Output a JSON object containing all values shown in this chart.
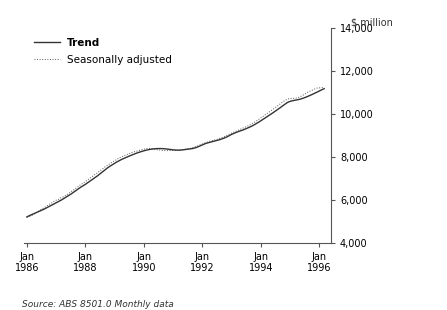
{
  "title": "",
  "ylabel": "$ million",
  "xlabel": "",
  "source_text": "Source: ABS 8501.0 Monthly data",
  "ylim": [
    4000,
    14000
  ],
  "yticks": [
    4000,
    6000,
    8000,
    10000,
    12000,
    14000
  ],
  "ytick_labels": [
    "4,000",
    "6,000",
    "8,000",
    "10,000",
    "12,000",
    "14,000"
  ],
  "xtick_years": [
    1986,
    1988,
    1990,
    1992,
    1994,
    1996
  ],
  "xlim_start": 1985.9,
  "xlim_end": 1996.4,
  "legend_entries": [
    "Trend",
    "Seasonally adjusted"
  ],
  "trend_color": "#333333",
  "seasonal_color": "#555555",
  "background_color": "#ffffff",
  "trend_data_x": [
    1986.0,
    1986.083,
    1986.167,
    1986.25,
    1986.333,
    1986.417,
    1986.5,
    1986.583,
    1986.667,
    1986.75,
    1986.833,
    1986.917,
    1987.0,
    1987.083,
    1987.167,
    1987.25,
    1987.333,
    1987.417,
    1987.5,
    1987.583,
    1987.667,
    1987.75,
    1987.833,
    1987.917,
    1988.0,
    1988.083,
    1988.167,
    1988.25,
    1988.333,
    1988.417,
    1988.5,
    1988.583,
    1988.667,
    1988.75,
    1988.833,
    1988.917,
    1989.0,
    1989.083,
    1989.167,
    1989.25,
    1989.333,
    1989.417,
    1989.5,
    1989.583,
    1989.667,
    1989.75,
    1989.833,
    1989.917,
    1990.0,
    1990.083,
    1990.167,
    1990.25,
    1990.333,
    1990.417,
    1990.5,
    1990.583,
    1990.667,
    1990.75,
    1990.833,
    1990.917,
    1991.0,
    1991.083,
    1991.167,
    1991.25,
    1991.333,
    1991.417,
    1991.5,
    1991.583,
    1991.667,
    1991.75,
    1991.833,
    1991.917,
    1992.0,
    1992.083,
    1992.167,
    1992.25,
    1992.333,
    1992.417,
    1992.5,
    1992.583,
    1992.667,
    1992.75,
    1992.833,
    1992.917,
    1993.0,
    1993.083,
    1993.167,
    1993.25,
    1993.333,
    1993.417,
    1993.5,
    1993.583,
    1993.667,
    1993.75,
    1993.833,
    1993.917,
    1994.0,
    1994.083,
    1994.167,
    1994.25,
    1994.333,
    1994.417,
    1994.5,
    1994.583,
    1994.667,
    1994.75,
    1994.833,
    1994.917,
    1995.0,
    1995.083,
    1995.167,
    1995.25,
    1995.333,
    1995.417,
    1995.5,
    1995.583,
    1995.667,
    1995.75,
    1995.833,
    1995.917,
    1996.0,
    1996.083,
    1996.167
  ],
  "trend_data_y": [
    5200,
    5260,
    5310,
    5360,
    5410,
    5460,
    5510,
    5560,
    5620,
    5680,
    5740,
    5800,
    5860,
    5920,
    5980,
    6050,
    6120,
    6190,
    6260,
    6340,
    6420,
    6500,
    6580,
    6650,
    6720,
    6800,
    6880,
    6960,
    7040,
    7120,
    7210,
    7300,
    7390,
    7480,
    7560,
    7630,
    7700,
    7770,
    7830,
    7890,
    7940,
    7990,
    8040,
    8085,
    8130,
    8175,
    8215,
    8250,
    8285,
    8315,
    8340,
    8360,
    8375,
    8385,
    8390,
    8390,
    8385,
    8375,
    8360,
    8345,
    8330,
    8320,
    8315,
    8320,
    8330,
    8345,
    8360,
    8375,
    8390,
    8420,
    8460,
    8510,
    8560,
    8610,
    8650,
    8680,
    8710,
    8740,
    8770,
    8800,
    8840,
    8880,
    8930,
    8990,
    9050,
    9100,
    9150,
    9190,
    9230,
    9270,
    9320,
    9370,
    9420,
    9480,
    9545,
    9615,
    9685,
    9760,
    9835,
    9910,
    9985,
    10060,
    10140,
    10220,
    10300,
    10385,
    10465,
    10545,
    10590,
    10620,
    10645,
    10665,
    10690,
    10725,
    10765,
    10810,
    10860,
    10910,
    10965,
    11020,
    11075,
    11130,
    11185
  ],
  "seasonal_data_x": [
    1986.0,
    1986.083,
    1986.167,
    1986.25,
    1986.333,
    1986.417,
    1986.5,
    1986.583,
    1986.667,
    1986.75,
    1986.833,
    1986.917,
    1987.0,
    1987.083,
    1987.167,
    1987.25,
    1987.333,
    1987.417,
    1987.5,
    1987.583,
    1987.667,
    1987.75,
    1987.833,
    1987.917,
    1988.0,
    1988.083,
    1988.167,
    1988.25,
    1988.333,
    1988.417,
    1988.5,
    1988.583,
    1988.667,
    1988.75,
    1988.833,
    1988.917,
    1989.0,
    1989.083,
    1989.167,
    1989.25,
    1989.333,
    1989.417,
    1989.5,
    1989.583,
    1989.667,
    1989.75,
    1989.833,
    1989.917,
    1990.0,
    1990.083,
    1990.167,
    1990.25,
    1990.333,
    1990.417,
    1990.5,
    1990.583,
    1990.667,
    1990.75,
    1990.833,
    1990.917,
    1991.0,
    1991.083,
    1991.167,
    1991.25,
    1991.333,
    1991.417,
    1991.5,
    1991.583,
    1991.667,
    1991.75,
    1991.833,
    1991.917,
    1992.0,
    1992.083,
    1992.167,
    1992.25,
    1992.333,
    1992.417,
    1992.5,
    1992.583,
    1992.667,
    1992.75,
    1992.833,
    1992.917,
    1993.0,
    1993.083,
    1993.167,
    1993.25,
    1993.333,
    1993.417,
    1993.5,
    1993.583,
    1993.667,
    1993.75,
    1993.833,
    1993.917,
    1994.0,
    1994.083,
    1994.167,
    1994.25,
    1994.333,
    1994.417,
    1994.5,
    1994.583,
    1994.667,
    1994.75,
    1994.833,
    1994.917,
    1995.0,
    1995.083,
    1995.167,
    1995.25,
    1995.333,
    1995.417,
    1995.5,
    1995.583,
    1995.667,
    1995.75,
    1995.833,
    1995.917,
    1996.0,
    1996.083,
    1996.167
  ],
  "seasonal_data_y": [
    5190,
    5220,
    5270,
    5340,
    5410,
    5480,
    5560,
    5630,
    5700,
    5780,
    5840,
    5920,
    5980,
    6020,
    6100,
    6140,
    6210,
    6280,
    6370,
    6440,
    6530,
    6610,
    6700,
    6770,
    6850,
    6930,
    7020,
    7100,
    7190,
    7260,
    7360,
    7430,
    7530,
    7600,
    7680,
    7760,
    7820,
    7890,
    7960,
    8010,
    8060,
    8110,
    8150,
    8200,
    8240,
    8270,
    8300,
    8330,
    8360,
    8390,
    8400,
    8390,
    8370,
    8350,
    8330,
    8310,
    8300,
    8295,
    8295,
    8305,
    8310,
    8310,
    8315,
    8320,
    8340,
    8360,
    8380,
    8400,
    8430,
    8470,
    8510,
    8560,
    8600,
    8650,
    8690,
    8730,
    8760,
    8790,
    8820,
    8860,
    8900,
    8950,
    9000,
    9060,
    9110,
    9160,
    9210,
    9260,
    9310,
    9360,
    9410,
    9460,
    9520,
    9590,
    9660,
    9740,
    9820,
    9900,
    9980,
    10060,
    10140,
    10220,
    10300,
    10390,
    10480,
    10570,
    10640,
    10700,
    10720,
    10730,
    10740,
    10760,
    10800,
    10860,
    10930,
    11000,
    11060,
    11110,
    11160,
    11210,
    11220,
    11230,
    11250
  ]
}
